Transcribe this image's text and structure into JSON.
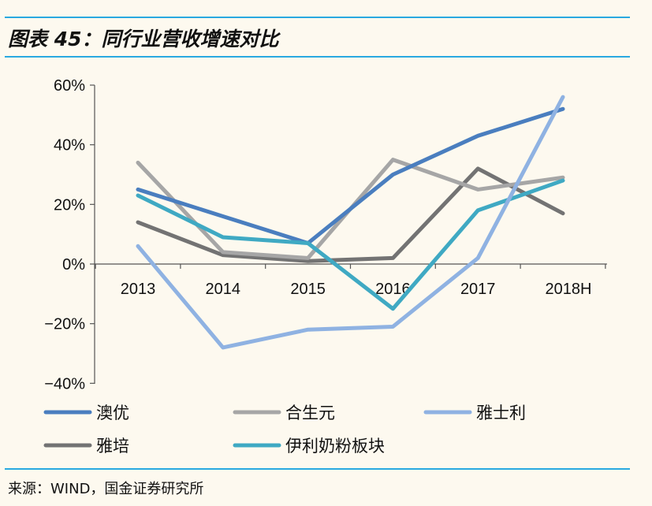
{
  "title": "图表 45：同行业营收增速对比",
  "source": "来源：WIND，国金证券研究所",
  "colors": {
    "rule": "#29a9e0",
    "background": "#fdf9ef"
  },
  "chart_data": {
    "type": "line",
    "categories": [
      "2013",
      "2014",
      "2015",
      "2016",
      "2017",
      "2018H"
    ],
    "yticks": [
      "60%",
      "40%",
      "20%",
      "0%",
      "−20%",
      "−40%"
    ],
    "ylim": [
      -40,
      60
    ],
    "grid": false,
    "legend_position": "bottom",
    "series": [
      {
        "name": "澳优",
        "color": "#4a7ebf",
        "values": [
          25,
          16,
          7,
          30,
          43,
          52
        ]
      },
      {
        "name": "合生元",
        "color": "#a6a6a6",
        "values": [
          34,
          4,
          2,
          35,
          25,
          29
        ]
      },
      {
        "name": "雅士利",
        "color": "#8fb2e2",
        "values": [
          6,
          -28,
          -22,
          -21,
          2,
          56
        ]
      },
      {
        "name": "雅培",
        "color": "#737373",
        "values": [
          14,
          3,
          1,
          2,
          32,
          17
        ]
      },
      {
        "name": "伊利奶粉板块",
        "color": "#3fa9c3",
        "values": [
          23,
          9,
          7,
          -15,
          18,
          28
        ]
      }
    ]
  }
}
